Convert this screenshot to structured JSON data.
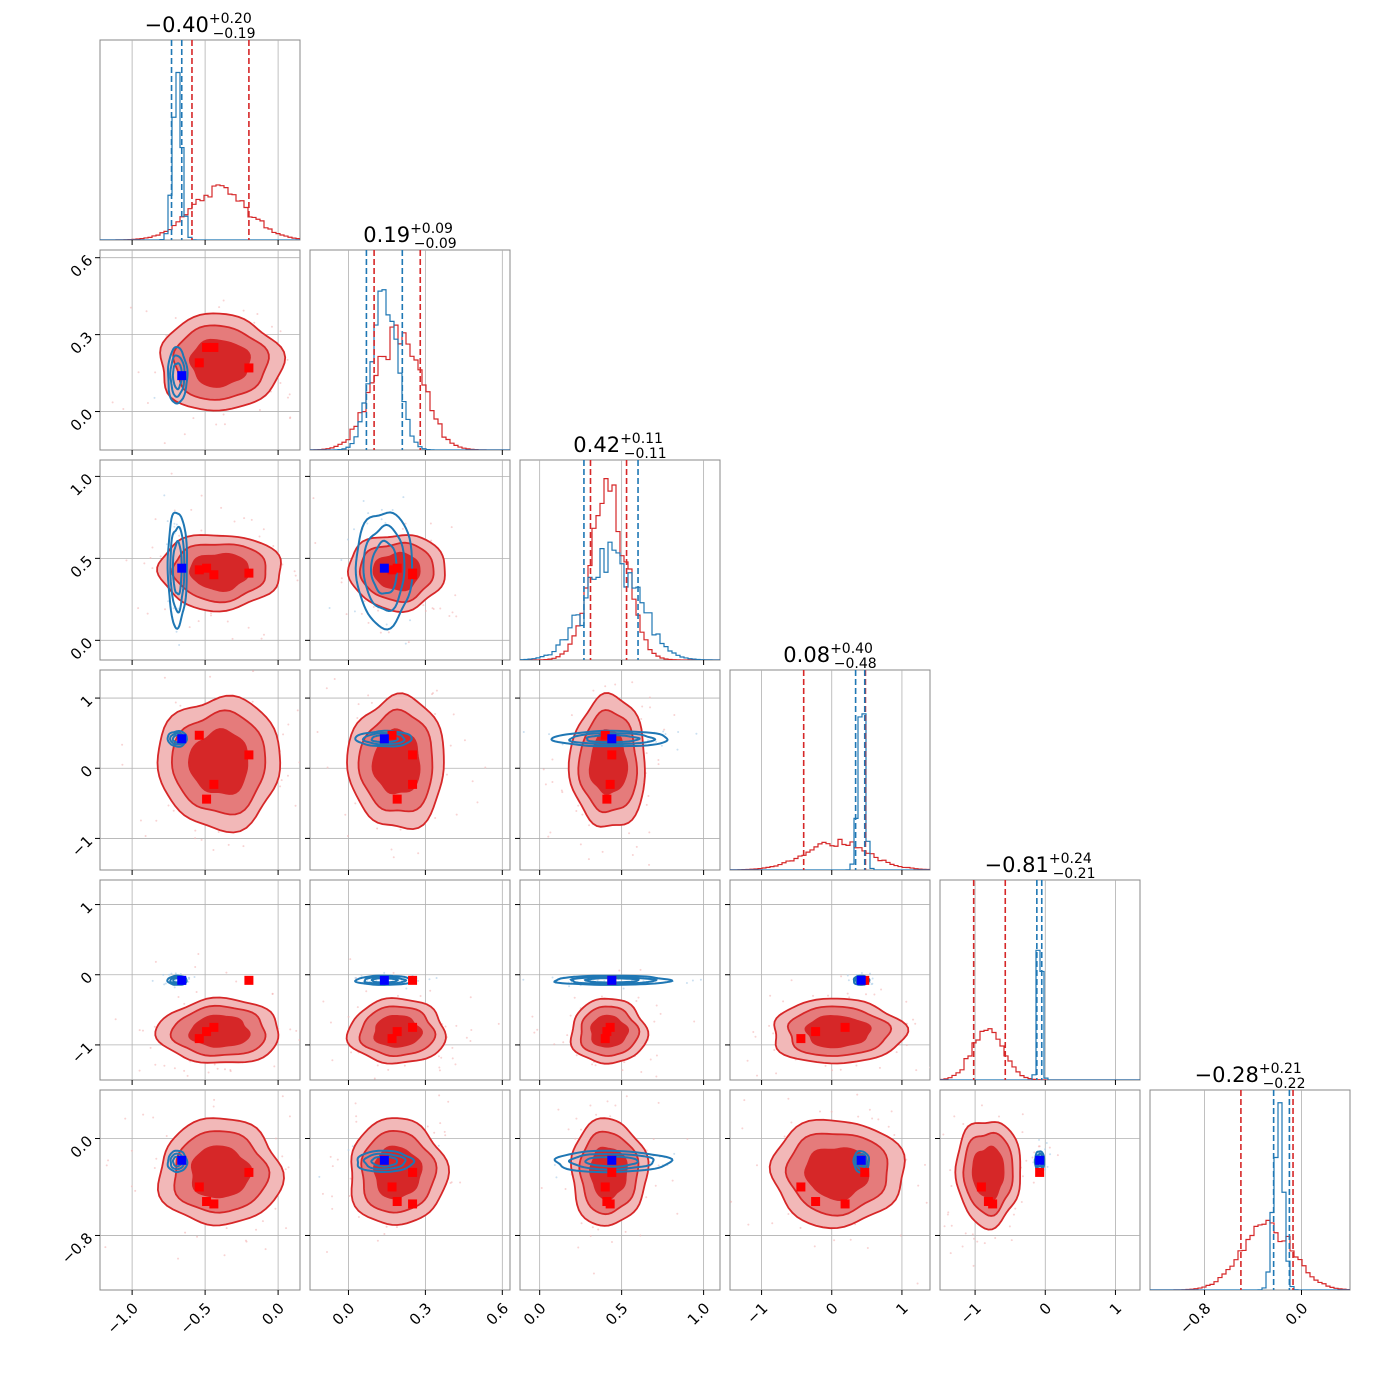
{
  "figure": {
    "n_params": 6,
    "colors": {
      "posterior_a": "#d62728",
      "posterior_b": "#1f77b4",
      "marker_a": "#ff0000",
      "marker_b": "#0000ff",
      "grid": "#b0b0b0"
    }
  },
  "chart_data": {
    "type": "corner",
    "series": [
      {
        "color": "#d62728"
      },
      {
        "color": "#1f77b4"
      }
    ],
    "params": [
      {
        "title_main": "−0.40",
        "title_sup": "+0.20",
        "title_sub": "−0.19",
        "range": [
          -1.22,
          0.15
        ],
        "ticks": [
          -1.0,
          -0.5,
          0.0
        ],
        "tick_labels": [
          "−1.0",
          "−0.5",
          "0.0"
        ],
        "red": {
          "mean": -0.4,
          "sd": 0.2,
          "quantiles": [
            -0.59,
            -0.2
          ]
        },
        "blue": {
          "mean": -0.69,
          "sd": 0.03,
          "quantiles": [
            -0.73,
            -0.66
          ]
        },
        "red_markers": [
          -0.54,
          -0.49,
          -0.44,
          -0.2
        ],
        "blue_marker": -0.66
      },
      {
        "title_main": "0.19",
        "title_sup": "+0.09",
        "title_sub": "−0.09",
        "range": [
          -0.15,
          0.63
        ],
        "ticks": [
          0.0,
          0.3,
          0.6
        ],
        "tick_labels": [
          "0.0",
          "0.3",
          "0.6"
        ],
        "red": {
          "mean": 0.19,
          "sd": 0.09,
          "quantiles": [
            0.1,
            0.28
          ]
        },
        "blue": {
          "mean": 0.14,
          "sd": 0.05,
          "quantiles": [
            0.07,
            0.21
          ]
        },
        "red_markers": [
          0.17,
          0.19,
          0.25,
          0.25
        ],
        "blue_marker": 0.14
      },
      {
        "title_main": "0.42",
        "title_sup": "+0.11",
        "title_sub": "−0.11",
        "range": [
          -0.12,
          1.1
        ],
        "ticks": [
          0.0,
          0.5,
          1.0
        ],
        "tick_labels": [
          "0.0",
          "0.5",
          "1.0"
        ],
        "red": {
          "mean": 0.42,
          "sd": 0.11,
          "quantiles": [
            0.31,
            0.53
          ]
        },
        "blue": {
          "mean": 0.44,
          "sd": 0.16,
          "quantiles": [
            0.27,
            0.6
          ]
        },
        "red_markers": [
          0.4,
          0.41,
          0.43,
          0.44
        ],
        "blue_marker": 0.44
      },
      {
        "title_main": "0.08",
        "title_sup": "+0.40",
        "title_sub": "−0.48",
        "range": [
          -1.45,
          1.4
        ],
        "ticks": [
          -1,
          0,
          1
        ],
        "tick_labels": [
          "−1",
          "0",
          "1"
        ],
        "red": {
          "mean": 0.08,
          "sd": 0.45,
          "quantiles": [
            -0.4,
            0.48
          ]
        },
        "blue": {
          "mean": 0.42,
          "sd": 0.05,
          "quantiles": [
            0.34,
            0.47
          ]
        },
        "red_markers": [
          -0.44,
          -0.23,
          0.19,
          0.47
        ],
        "blue_marker": 0.42
      },
      {
        "title_main": "−0.81",
        "title_sup": "+0.24",
        "title_sub": "−0.21",
        "range": [
          -1.5,
          1.35
        ],
        "ticks": [
          -1,
          0,
          1
        ],
        "tick_labels": [
          "−1",
          "0",
          "1"
        ],
        "red": {
          "mean": -0.81,
          "sd": 0.22,
          "quantiles": [
            -1.02,
            -0.57
          ]
        },
        "blue": {
          "mean": -0.08,
          "sd": 0.03,
          "quantiles": [
            -0.12,
            -0.05
          ]
        },
        "red_markers": [
          -0.91,
          -0.81,
          -0.75,
          -0.08
        ],
        "blue_marker": -0.08
      },
      {
        "title_main": "−0.28",
        "title_sup": "+0.21",
        "title_sub": "−0.22",
        "range": [
          -1.25,
          0.4
        ],
        "ticks": [
          -0.8,
          0.0
        ],
        "tick_labels": [
          "−0.8",
          "0.0"
        ],
        "red": {
          "mean": -0.28,
          "sd": 0.21,
          "quantiles": [
            -0.5,
            -0.07
          ]
        },
        "blue": {
          "mean": -0.19,
          "sd": 0.04,
          "quantiles": [
            -0.23,
            -0.1
          ]
        },
        "red_markers": [
          -0.28,
          -0.4,
          -0.52,
          -0.54
        ],
        "blue_marker": -0.18
      }
    ]
  }
}
